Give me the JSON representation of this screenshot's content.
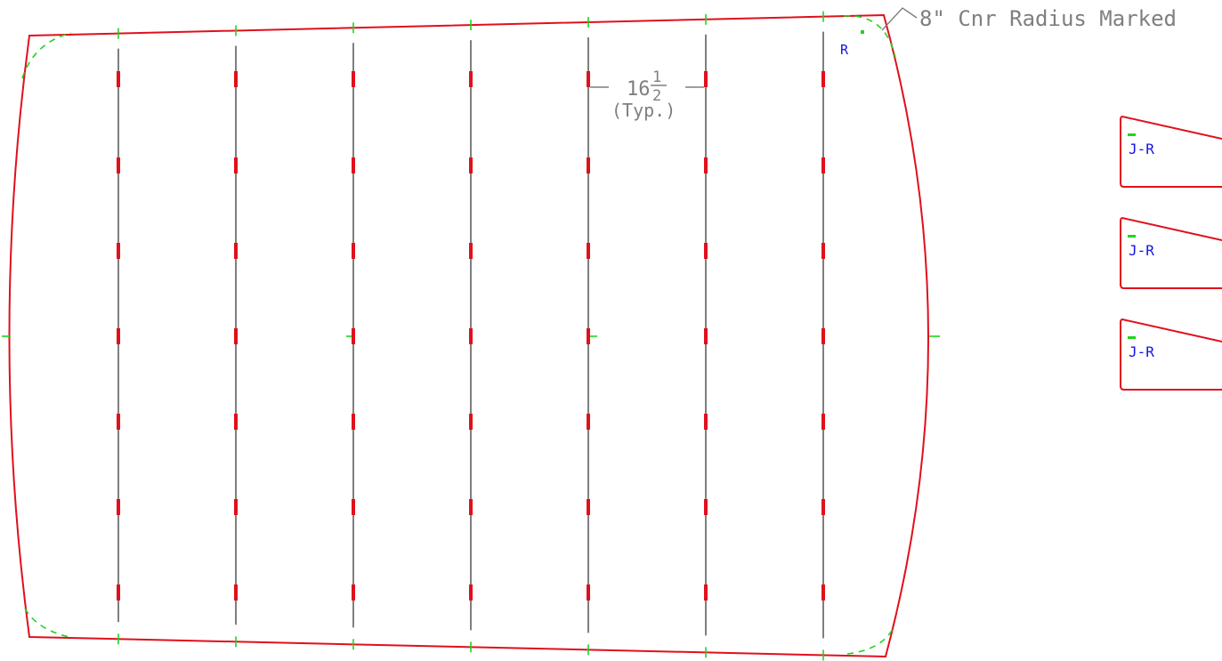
{
  "colors": {
    "outline": "#e0101c",
    "stitch": "#1fd41f",
    "stay": "#7f7f7f",
    "pocket": "#e0101c",
    "label": "#1414e6",
    "annotation": "#7f7f7f"
  },
  "annotations": {
    "corner_radius": "8\" Cnr Radius Marked",
    "corner_marker": "R",
    "spacing_whole": "16",
    "spacing_num": "1",
    "spacing_den": "2",
    "spacing_note": "(Typ.)"
  },
  "panel": {
    "stay_count": 7,
    "pockets_per_stay": 7
  },
  "side_pieces": [
    {
      "label": "J-R"
    },
    {
      "label": "J-R"
    },
    {
      "label": "J-R"
    }
  ]
}
